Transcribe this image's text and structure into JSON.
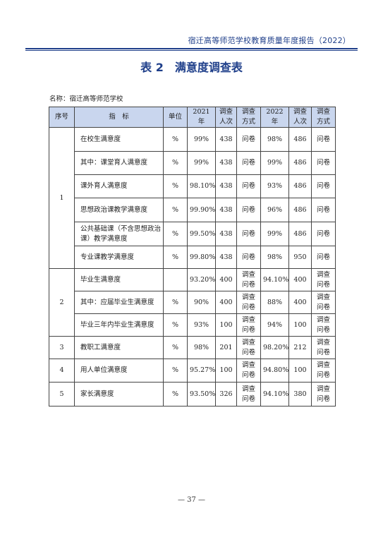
{
  "header": {
    "running_title": "宿迁高等师范学校教育质量年度报告（2022）"
  },
  "table_title": "表 2　满意度调查表",
  "name_line": "名称：宿迁高等师范学校",
  "columns": [
    "序号",
    "指　标",
    "单位",
    "2021 年",
    "调查人次",
    "调查方式",
    "2022 年",
    "调查人次",
    "调查方式"
  ],
  "groups": [
    {
      "no": "1",
      "rows": [
        {
          "indicator": "在校生满意度",
          "unit": "%",
          "y2021": "99%",
          "n2021": "438",
          "m2021": "问卷",
          "y2022": "98%",
          "n2022": "486",
          "m2022": "问卷"
        },
        {
          "indicator": "其中：课堂育人满意度",
          "unit": "%",
          "y2021": "99%",
          "n2021": "438",
          "m2021": "问卷",
          "y2022": "99%",
          "n2022": "486",
          "m2022": "问卷"
        },
        {
          "indicator": "课外育人满意度",
          "unit": "%",
          "y2021": "98.10%",
          "n2021": "438",
          "m2021": "问卷",
          "y2022": "93%",
          "n2022": "486",
          "m2022": "问卷"
        },
        {
          "indicator": "思想政治课教学满意度",
          "unit": "%",
          "y2021": "99.90%",
          "n2021": "438",
          "m2021": "问卷",
          "y2022": "96%",
          "n2022": "486",
          "m2022": "问卷"
        },
        {
          "indicator": "公共基础课（不含思想政治课）教学满意度",
          "unit": "%",
          "y2021": "99.50%",
          "n2021": "438",
          "m2021": "问卷",
          "y2022": "99%",
          "n2022": "486",
          "m2022": "问卷"
        },
        {
          "indicator": "专业课教学满意度",
          "unit": "%",
          "y2021": "99.80%",
          "n2021": "438",
          "m2021": "问卷",
          "y2022": "98%",
          "n2022": "950",
          "m2022": "问卷"
        }
      ]
    },
    {
      "no": "2",
      "rows": [
        {
          "indicator": "毕业生满意度",
          "unit": "",
          "y2021": "93.20%",
          "n2021": "400",
          "m2021": "调查问卷",
          "y2022": "94.10%",
          "n2022": "400",
          "m2022": "调查问卷"
        },
        {
          "indicator": "其中：应届毕业生满意度",
          "unit": "%",
          "y2021": "90%",
          "n2021": "400",
          "m2021": "调查问卷",
          "y2022": "88%",
          "n2022": "400",
          "m2022": "调查问卷"
        },
        {
          "indicator": "毕业三年内毕业生满意度",
          "unit": "%",
          "y2021": "93%",
          "n2021": "100",
          "m2021": "调查问卷",
          "y2022": "94%",
          "n2022": "100",
          "m2022": "调查问卷"
        }
      ]
    },
    {
      "no": "3",
      "rows": [
        {
          "indicator": "教职工满意度",
          "unit": "%",
          "y2021": "98%",
          "n2021": "201",
          "m2021": "调查问卷",
          "y2022": "98.20%",
          "n2022": "212",
          "m2022": "调查问卷"
        }
      ]
    },
    {
      "no": "4",
      "rows": [
        {
          "indicator": "用人单位满意度",
          "unit": "%",
          "y2021": "95.27%",
          "n2021": "100",
          "m2021": "调查问卷",
          "y2022": "94.80%",
          "n2022": "100",
          "m2022": "调查问卷"
        }
      ]
    },
    {
      "no": "5",
      "rows": [
        {
          "indicator": "家长满意度",
          "unit": "%",
          "y2021": "93.50%",
          "n2021": "326",
          "m2021": "调查问卷",
          "y2022": "94.10%",
          "n2022": "380",
          "m2022": "调查问卷"
        }
      ]
    }
  ],
  "footer": {
    "page_number": "— 37 —"
  }
}
